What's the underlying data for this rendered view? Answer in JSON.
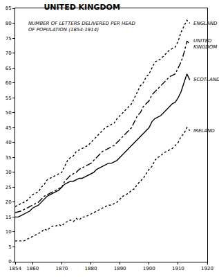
{
  "chart_data": {
    "type": "line",
    "title": "UNITED KINGDOM",
    "subtitle": "NUMBER OF LETTERS DELIVERED PER HEAD OF POPULATION (1854-1914)",
    "x": [
      1854,
      1855,
      1856,
      1857,
      1858,
      1859,
      1860,
      1861,
      1862,
      1863,
      1864,
      1865,
      1866,
      1867,
      1868,
      1869,
      1870,
      1871,
      1872,
      1873,
      1874,
      1875,
      1876,
      1877,
      1878,
      1879,
      1880,
      1881,
      1882,
      1883,
      1884,
      1885,
      1886,
      1887,
      1888,
      1889,
      1890,
      1891,
      1892,
      1893,
      1894,
      1895,
      1896,
      1897,
      1898,
      1899,
      1900,
      1901,
      1902,
      1903,
      1904,
      1905,
      1906,
      1907,
      1908,
      1909,
      1910,
      1911,
      1912,
      1913,
      1914
    ],
    "series": [
      {
        "name": "ENGLAND",
        "color": "#000000",
        "line_style": "dot",
        "values": [
          18.5,
          19,
          19.5,
          20,
          20.5,
          21.5,
          22.5,
          23,
          23.5,
          25,
          26,
          27.5,
          28,
          28.5,
          29,
          29.5,
          30,
          32,
          34,
          35,
          35.5,
          37,
          37.5,
          38,
          38.5,
          39,
          40,
          41,
          42,
          43,
          44,
          45,
          45.5,
          46,
          46.5,
          48,
          49,
          50,
          51,
          52,
          53,
          55,
          57,
          59,
          60,
          62,
          63,
          65,
          67,
          67.5,
          68,
          69,
          70,
          71,
          71.5,
          72,
          74,
          77,
          79,
          81,
          80
        ]
      },
      {
        "name": "UNITED KINGDOM",
        "color": "#000000",
        "line_style": "dashdot",
        "values": [
          16.5,
          16.8,
          17,
          17.5,
          18,
          18.5,
          19,
          19.5,
          20,
          21,
          22,
          22.5,
          23,
          23.5,
          24,
          24.5,
          25,
          27,
          28,
          29,
          29.5,
          30,
          31,
          31.5,
          32,
          32.5,
          33,
          34,
          35,
          36,
          37,
          37.5,
          38,
          38.5,
          39,
          40,
          41,
          42,
          43,
          44,
          45,
          47,
          49,
          50,
          52,
          53,
          54,
          56,
          57,
          58,
          59,
          60,
          61,
          62,
          62.5,
          63,
          65,
          67,
          70,
          74,
          73
        ]
      },
      {
        "name": "SCOTLAND",
        "color": "#000000",
        "line_style": "solid",
        "values": [
          15,
          15,
          15.5,
          16,
          16.5,
          17,
          18,
          18.5,
          19,
          20,
          21,
          22,
          22.5,
          23,
          23.5,
          24,
          25,
          26,
          26.5,
          27,
          27,
          27.5,
          28,
          28,
          28.5,
          29,
          29.5,
          30,
          31,
          31.5,
          32,
          32.5,
          33,
          33,
          33.5,
          34,
          35,
          36,
          37,
          38,
          39,
          40,
          41,
          42,
          43,
          44,
          45,
          47,
          48,
          48.5,
          49,
          50,
          51,
          52,
          53,
          53.5,
          55,
          57,
          60,
          63,
          61
        ]
      },
      {
        "name": "IRELAND",
        "color": "#000000",
        "line_style": "dot",
        "values": [
          7,
          7,
          7,
          7,
          7.5,
          8,
          8.5,
          9,
          9.5,
          10,
          11,
          10.5,
          11.5,
          12,
          12,
          12.5,
          12,
          13,
          13.5,
          14,
          13.5,
          14.5,
          14,
          15,
          15,
          15.5,
          16,
          16.5,
          17,
          17.5,
          18,
          18.5,
          19,
          19,
          19.5,
          20,
          21,
          22,
          22.5,
          23,
          24,
          24.5,
          26,
          27,
          28,
          29.5,
          31,
          32,
          34,
          35,
          35.5,
          36.5,
          37,
          37.5,
          38,
          39,
          40,
          42,
          43,
          45,
          44
        ]
      }
    ],
    "xlim": [
      1854,
      1920
    ],
    "xticks": [
      1854,
      1860,
      1870,
      1880,
      1890,
      1900,
      1910,
      1920
    ],
    "ylim": [
      0,
      85
    ],
    "yticks": [
      0,
      5,
      10,
      15,
      20,
      25,
      30,
      35,
      40,
      45,
      50,
      55,
      60,
      65,
      70,
      75,
      80,
      85
    ],
    "grid": false
  }
}
